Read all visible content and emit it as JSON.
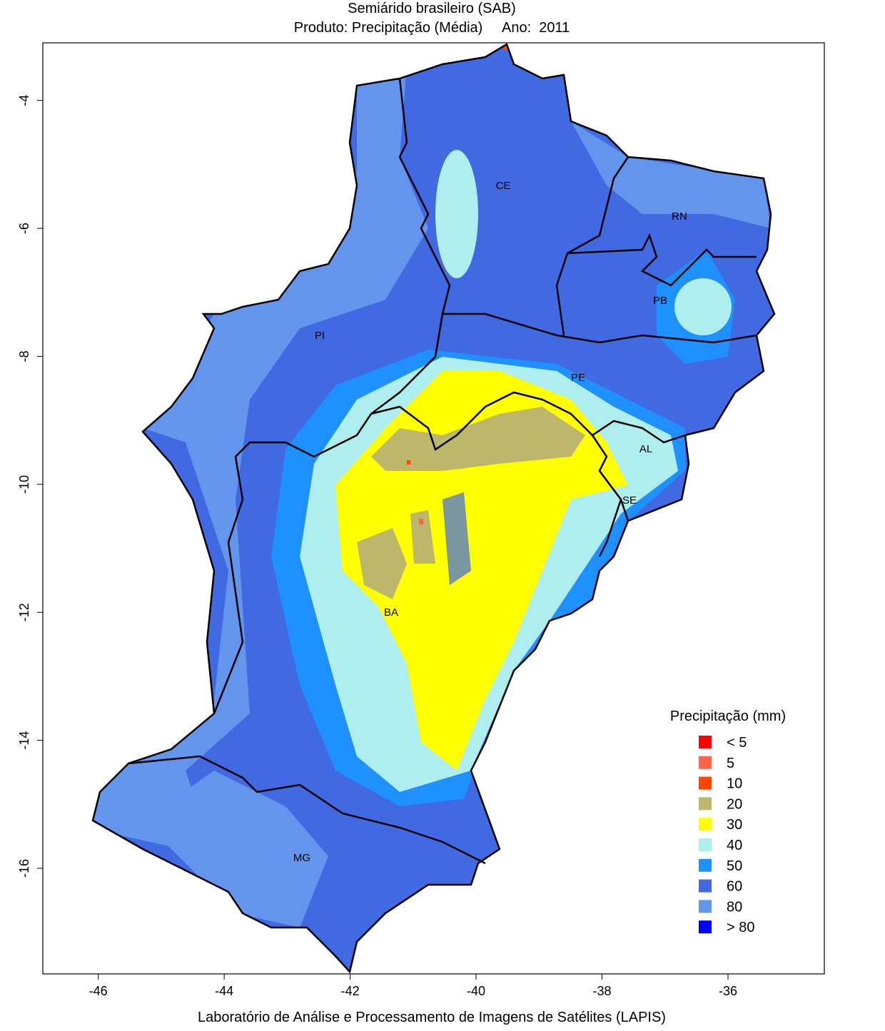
{
  "header": {
    "title": "Semiárido brasileiro (SAB)",
    "subtitle": "Produto: Precipitação (Média)     Ano:  2011"
  },
  "map": {
    "xlim": [
      -46.88,
      -34.47
    ],
    "ylim": [
      -17.65,
      -3.1
    ],
    "xticks": [
      -46,
      -44,
      -42,
      -40,
      -38,
      -36
    ],
    "yticks": [
      -4,
      -6,
      -8,
      -10,
      -12,
      -14,
      -16
    ],
    "states": [
      "CE",
      "RN",
      "PB",
      "PI",
      "PE",
      "AL",
      "SE",
      "BA",
      "MG"
    ]
  },
  "legend": {
    "title": "Precipitação (mm)",
    "items": [
      {
        "label": "< 5",
        "color": "#ff0000"
      },
      {
        "label": "5",
        "color": "#ff6347"
      },
      {
        "label": "10",
        "color": "#ff4500"
      },
      {
        "label": "20",
        "color": "#bdb76b"
      },
      {
        "label": "30",
        "color": "#ffff00"
      },
      {
        "label": "40",
        "color": "#afeeee"
      },
      {
        "label": "50",
        "color": "#1e90ff"
      },
      {
        "label": "60",
        "color": "#4169e1"
      },
      {
        "label": "80",
        "color": "#6495ed"
      },
      {
        "label": "> 80",
        "color": "#0000ff"
      }
    ]
  },
  "footer": {
    "credit": "Laboratório de Análise e Processamento de Imagens de Satélites (LAPIS)"
  }
}
